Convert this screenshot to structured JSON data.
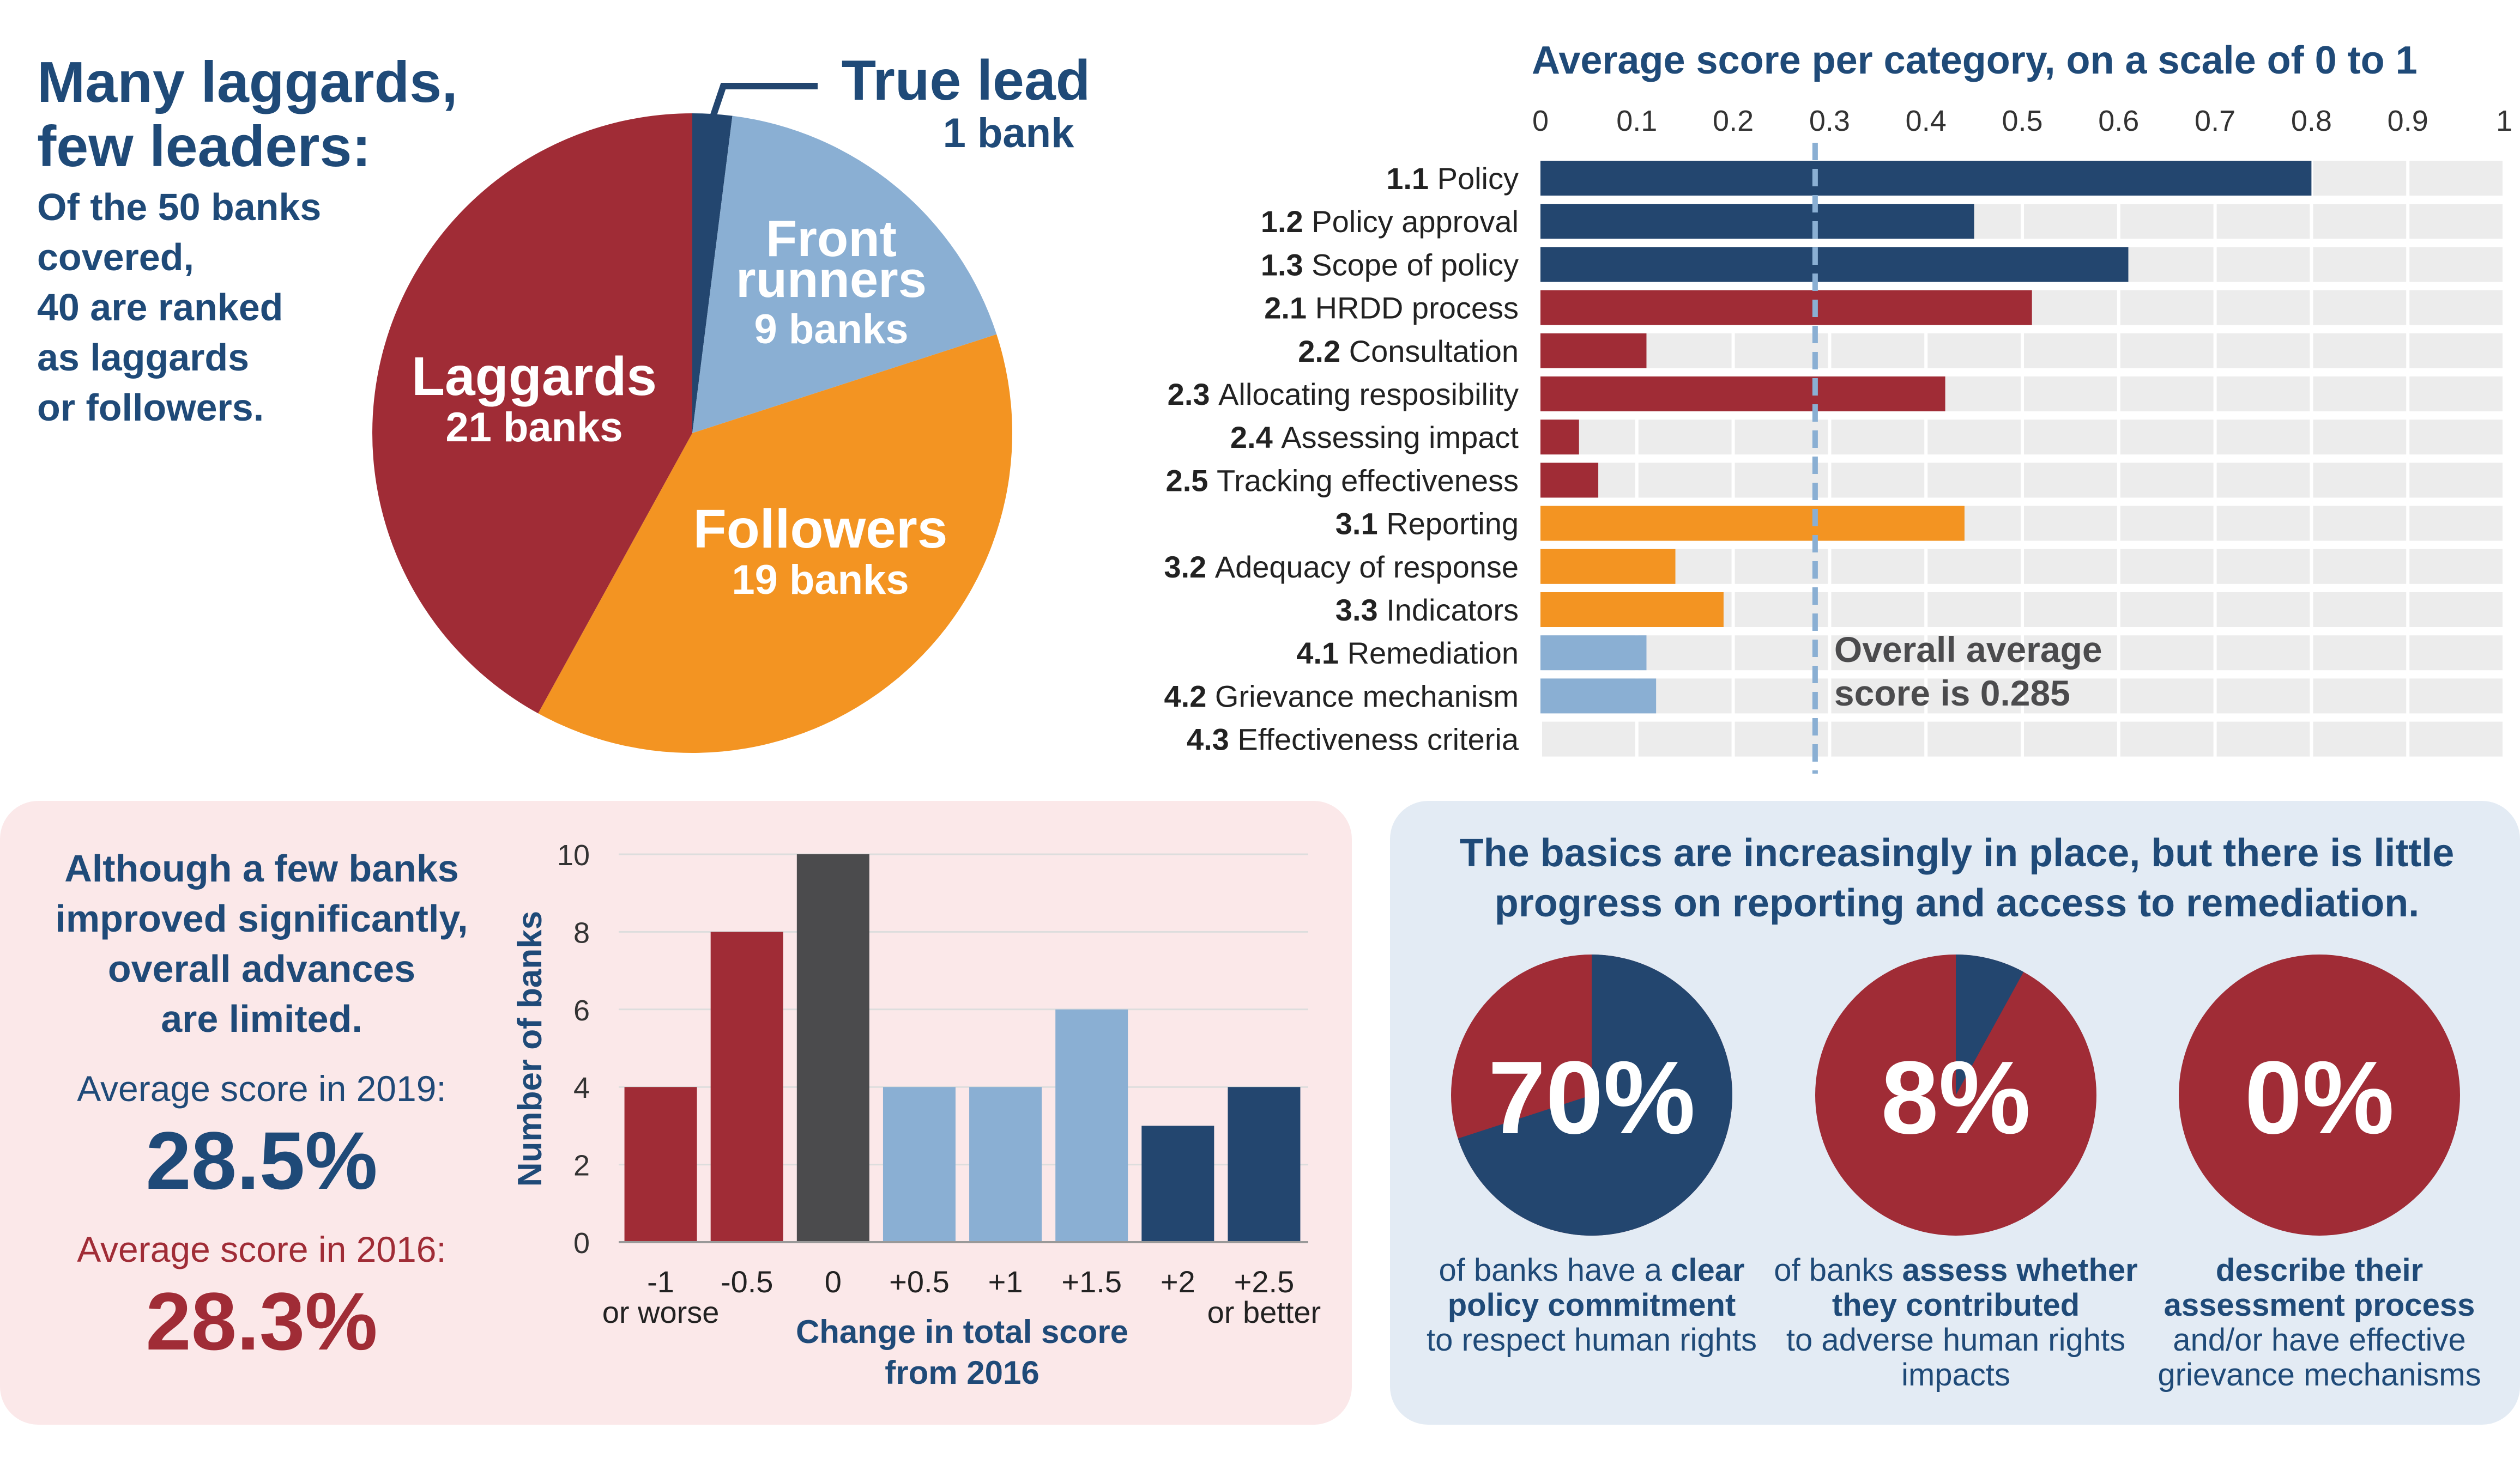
{
  "top_left": {
    "title_line1": "Many laggards,",
    "title_line2": "few leaders:",
    "sub_line1": "Of the 50 banks",
    "sub_line2": "covered,",
    "sub_line3": "40 are ranked",
    "sub_line4": "as laggards",
    "sub_line5": "or followers."
  },
  "bottom_left": {
    "head_line1": "Although a few banks",
    "head_line2": "improved significantly,",
    "head_line3": "overall advances",
    "head_line4": "are limited.",
    "label_2019": "Average score in 2019:",
    "value_2019": "28.5%",
    "label_2016": "Average score in 2016:",
    "value_2016": "28.3%"
  },
  "bottom_right": {
    "head_line1": "The basics are increasingly in place, but there is little",
    "head_line2": "progress on reporting and access to remediation.",
    "pies": [
      {
        "label": "70%",
        "value": 70,
        "cap_pre": "of banks have a ",
        "cap_bold": "clear policy commitment",
        "cap_post": "to respect human rights"
      },
      {
        "label": "8%",
        "value": 8,
        "cap_pre": "of banks ",
        "cap_bold": "assess whether they contributed",
        "cap_post": "to adverse human rights impacts"
      },
      {
        "label": "0%",
        "value": 0,
        "cap_pre": "",
        "cap_bold": "describe their assessment process",
        "cap_post": "and/or have effective grievance mechanisms"
      }
    ],
    "colors": {
      "positive": "#23466f",
      "negative": "#a02c36"
    }
  },
  "chart_data": [
    {
      "type": "pie",
      "slices": [
        {
          "name": "True leaders",
          "value": 1,
          "value_label": "1 bank",
          "color": "#23466f"
        },
        {
          "name": "Front runners",
          "value": 9,
          "value_label": "9 banks",
          "color": "#8aafd3"
        },
        {
          "name": "Followers",
          "value": 19,
          "value_label": "19 banks",
          "color": "#f39422"
        },
        {
          "name": "Laggards",
          "value": 21,
          "value_label": "21 banks",
          "color": "#a02c36"
        }
      ]
    },
    {
      "type": "bar",
      "orientation": "horizontal",
      "title": "Average score per category, on a scale of 0 to 1",
      "xlim": [
        0,
        1
      ],
      "ticks": [
        "0",
        "0.1",
        "0.2",
        "0.3",
        "0.4",
        "0.5",
        "0.6",
        "0.7",
        "0.8",
        "0.9",
        "1"
      ],
      "reference_line": {
        "value": 0.285,
        "label_line1": "Overall average",
        "label_line2": "score is 0.285"
      },
      "bars": [
        {
          "code": "1.1",
          "name": "Policy",
          "value": 0.8,
          "color": "#23466f"
        },
        {
          "code": "1.2",
          "name": "Policy approval",
          "value": 0.45,
          "color": "#23466f"
        },
        {
          "code": "1.3",
          "name": "Scope of policy",
          "value": 0.61,
          "color": "#23466f"
        },
        {
          "code": "2.1",
          "name": "HRDD process",
          "value": 0.51,
          "color": "#a02c36"
        },
        {
          "code": "2.2",
          "name": "Consultation",
          "value": 0.11,
          "color": "#a02c36"
        },
        {
          "code": "2.3",
          "name": "Allocating resposibility",
          "value": 0.42,
          "color": "#a02c36"
        },
        {
          "code": "2.4",
          "name": "Assessing impact",
          "value": 0.04,
          "color": "#a02c36"
        },
        {
          "code": "2.5",
          "name": "Tracking effectiveness",
          "value": 0.06,
          "color": "#a02c36"
        },
        {
          "code": "3.1",
          "name": "Reporting",
          "value": 0.44,
          "color": "#f39422"
        },
        {
          "code": "3.2",
          "name": "Adequacy of response",
          "value": 0.14,
          "color": "#f39422"
        },
        {
          "code": "3.3",
          "name": "Indicators",
          "value": 0.19,
          "color": "#f39422"
        },
        {
          "code": "4.1",
          "name": "Remediation",
          "value": 0.11,
          "color": "#8aafd3"
        },
        {
          "code": "4.2",
          "name": "Grievance mechanism",
          "value": 0.12,
          "color": "#8aafd3"
        },
        {
          "code": "4.3",
          "name": "Effectiveness criteria",
          "value": 0.0,
          "color": "#8aafd3"
        }
      ],
      "track_color": "#ececec"
    },
    {
      "type": "bar",
      "ylabel": "Number of banks",
      "xlabel_line1": "Change in total score",
      "xlabel_line2": "from 2016",
      "ylim": [
        0,
        10
      ],
      "yticks": [
        "0",
        "2",
        "4",
        "6",
        "8",
        "10"
      ],
      "categories": [
        {
          "label": "-1",
          "sub": "or worse",
          "value": 4,
          "color": "#a02c36"
        },
        {
          "label": "-0.5",
          "sub": "",
          "value": 8,
          "color": "#a02c36"
        },
        {
          "label": "0",
          "sub": "",
          "value": 10,
          "color": "#4b4b4d"
        },
        {
          "label": "+0.5",
          "sub": "",
          "value": 4,
          "color": "#8aafd3"
        },
        {
          "label": "+1",
          "sub": "",
          "value": 4,
          "color": "#8aafd3"
        },
        {
          "label": "+1.5",
          "sub": "",
          "value": 6,
          "color": "#8aafd3"
        },
        {
          "label": "+2",
          "sub": "",
          "value": 3,
          "color": "#23466f"
        },
        {
          "label": "+2.5",
          "sub": "or better",
          "value": 4,
          "color": "#23466f"
        }
      ]
    }
  ]
}
